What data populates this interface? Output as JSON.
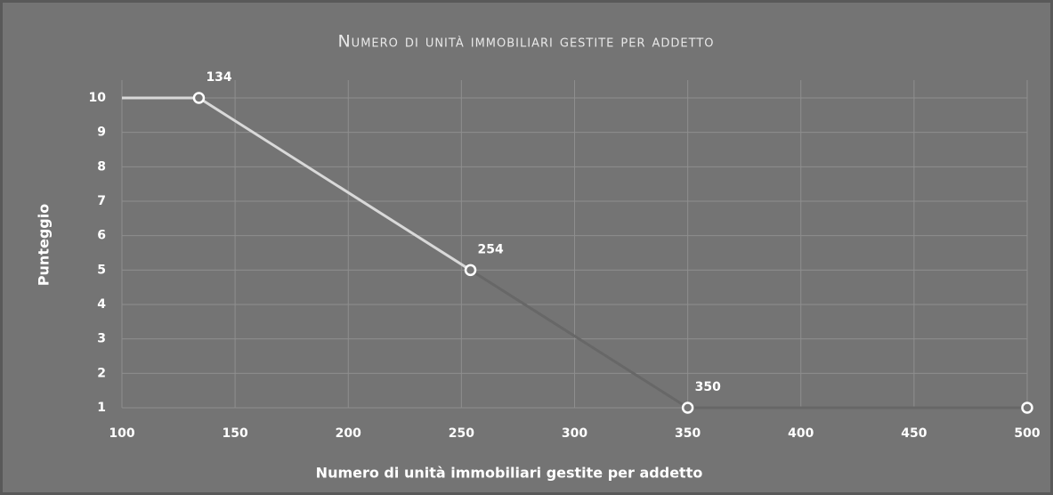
{
  "chart_data": {
    "type": "line",
    "title": "Numero di unità immobiliari gestite per addetto",
    "x_label": "Numero di unità immobiliari gestite per addetto",
    "y_label": "Punteggio",
    "xlim": [
      100,
      500
    ],
    "xticks": [
      100,
      150,
      200,
      250,
      300,
      350,
      400,
      450,
      500
    ],
    "ylim": [
      1,
      10
    ],
    "yticks": [
      1,
      2,
      3,
      4,
      5,
      6,
      7,
      8,
      9,
      10
    ],
    "grid": true,
    "series": [
      {
        "color": "#d9d9d9",
        "x": [
          100,
          134,
          254
        ],
        "values": [
          10,
          10,
          5
        ],
        "value_labels": [
          null,
          "134",
          "254"
        ]
      },
      {
        "color": "#676767",
        "x": [
          254,
          350,
          500
        ],
        "values": [
          5,
          1,
          1
        ],
        "value_labels": [
          null,
          "350",
          null
        ]
      }
    ]
  }
}
